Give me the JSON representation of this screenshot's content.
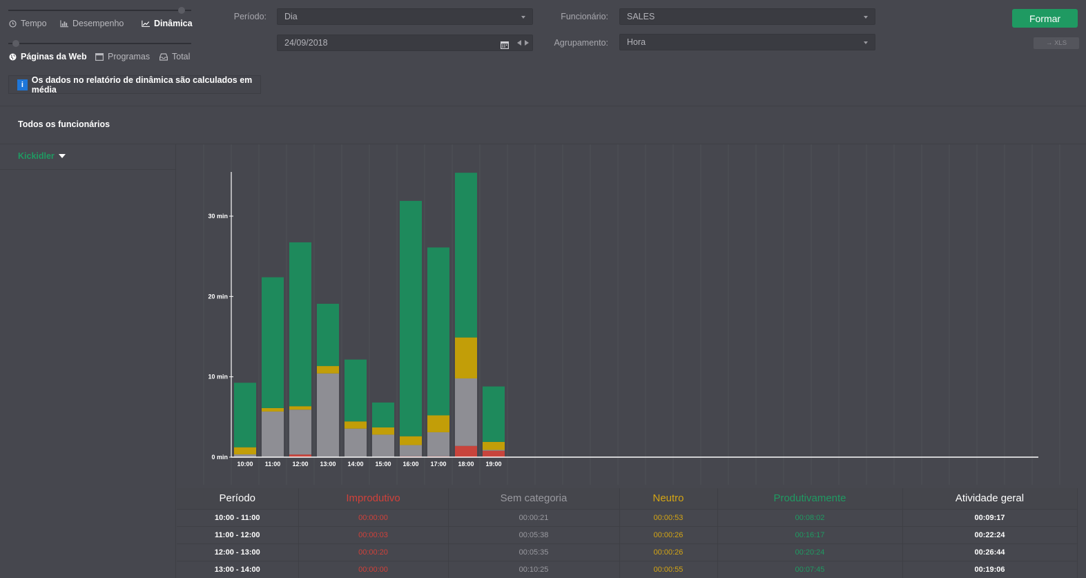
{
  "mode_tabs": [
    {
      "label": "Tempo",
      "icon": "clock-icon",
      "active": false
    },
    {
      "label": "Desempenho",
      "icon": "bar-chart-icon",
      "active": false
    },
    {
      "label": "Dinâmica",
      "icon": "line-chart-icon",
      "active": true
    }
  ],
  "source_tabs": [
    {
      "label": "Páginas da Web",
      "icon": "globe-icon",
      "active": true
    },
    {
      "label": "Programas",
      "icon": "window-icon",
      "active": false
    },
    {
      "label": "Total",
      "icon": "inbox-icon",
      "active": false
    }
  ],
  "info": {
    "text": "Os dados no relatório de dinâmica são calculados em média",
    "icon": "i"
  },
  "filters": {
    "period_label": "Período:",
    "period_value": "Dia",
    "date_value": "24/09/2018",
    "employee_label": "Funcionário:",
    "employee_value": "SALES",
    "grouping_label": "Agrupamento:",
    "grouping_value": "Hora"
  },
  "buttons": {
    "form": "Formar",
    "xls": "→ XLS"
  },
  "section_title": "Todos os funcionários",
  "employee": {
    "name": "Kickidler"
  },
  "colors": {
    "improdutivo": "#c8443c",
    "sem_categoria": "#8e8e94",
    "neutro": "#c29e08",
    "produtivo": "#1e8a5c",
    "accent": "#1f9a62"
  },
  "chart_data": {
    "type": "bar",
    "stacked": true,
    "categories": [
      "10:00",
      "11:00",
      "12:00",
      "13:00",
      "14:00",
      "15:00",
      "16:00",
      "17:00",
      "18:00",
      "19:00"
    ],
    "series": [
      {
        "name": "Improdutivo",
        "values": [
          0.0,
          0.05,
          0.33,
          0.0,
          0.05,
          0.0,
          0.1,
          0.1,
          1.4,
          0.8
        ]
      },
      {
        "name": "Sem categoria",
        "values": [
          0.35,
          5.63,
          5.58,
          10.42,
          3.5,
          2.8,
          1.4,
          3.0,
          8.4,
          0.1
        ]
      },
      {
        "name": "Neutro",
        "values": [
          0.88,
          0.43,
          0.43,
          0.92,
          0.9,
          0.9,
          1.1,
          2.1,
          5.1,
          1.0
        ]
      },
      {
        "name": "Produtivamente",
        "values": [
          8.03,
          16.28,
          20.4,
          7.75,
          7.7,
          3.1,
          29.3,
          20.9,
          20.5,
          6.9
        ]
      }
    ],
    "y_ticks": [
      "0 min",
      "10 min",
      "20 min",
      "30 min"
    ],
    "ylim": [
      0,
      35.5
    ],
    "grid": true
  },
  "table": {
    "headers": [
      "Período",
      "Improdutivo",
      "Sem categoria",
      "Neutro",
      "Produtivamente",
      "Atividade geral"
    ],
    "rows": [
      [
        "10:00 - 11:00",
        "00:00:00",
        "00:00:21",
        "00:00:53",
        "00:08:02",
        "00:09:17"
      ],
      [
        "11:00 - 12:00",
        "00:00:03",
        "00:05:38",
        "00:00:26",
        "00:16:17",
        "00:22:24"
      ],
      [
        "12:00 - 13:00",
        "00:00:20",
        "00:05:35",
        "00:00:26",
        "00:20:24",
        "00:26:44"
      ],
      [
        "13:00 - 14:00",
        "00:00:00",
        "00:10:25",
        "00:00:55",
        "00:07:45",
        "00:19:06"
      ]
    ]
  }
}
